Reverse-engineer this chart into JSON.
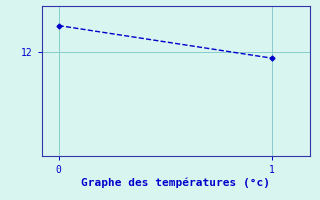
{
  "x": [
    0,
    1
  ],
  "y": [
    14.0,
    11.5
  ],
  "line_color": "#0000cc",
  "marker": "D",
  "marker_size": 2.5,
  "background_color": "#d8f5f0",
  "xlabel": "Graphe des températures (°c)",
  "xlabel_color": "#0000cc",
  "xlabel_fontsize": 8,
  "yticks": [
    12
  ],
  "xticks": [
    0,
    1
  ],
  "xlim": [
    -0.08,
    1.18
  ],
  "ylim": [
    4.0,
    15.5
  ],
  "grid_color": "#88cccc",
  "spine_color": "#3333aa",
  "tick_color": "#0000cc",
  "tick_fontsize": 7,
  "line_width": 1.0,
  "line_style": "--"
}
